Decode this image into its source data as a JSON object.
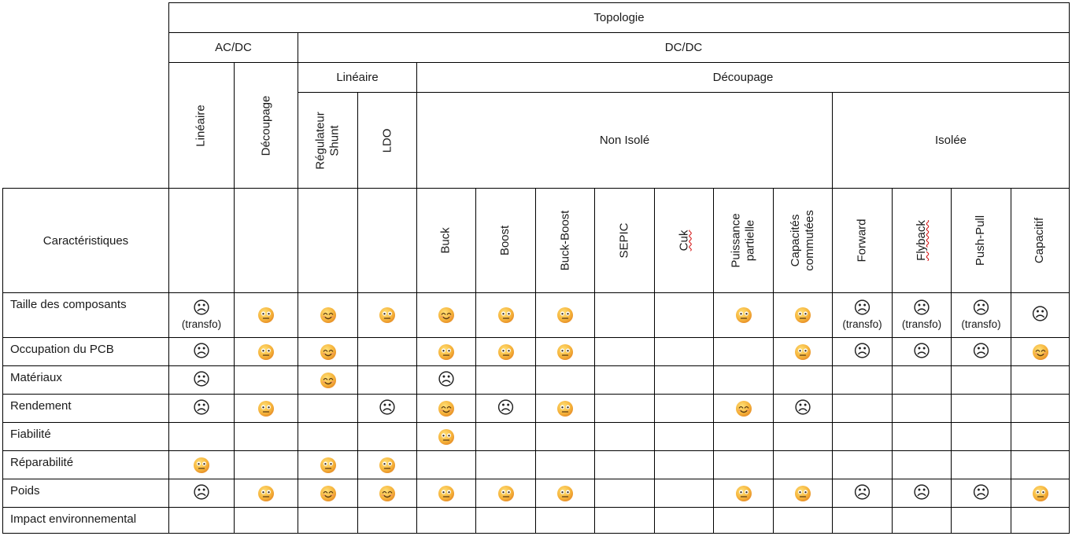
{
  "header": {
    "topologie": "Topologie",
    "acdc": "AC/DC",
    "dcdc": "DC/DC",
    "lineaire_dcdc": "Linéaire",
    "decoupage_dcdc": "Découpage",
    "non_isole": "Non Isolé",
    "isolee": "Isolée",
    "caracteristiques": "Caractéristiques"
  },
  "columns": [
    {
      "label": "Linéaire"
    },
    {
      "label": "Découpage"
    },
    {
      "label": "Régulateur\nShunt"
    },
    {
      "label": "LDO"
    },
    {
      "label": "Buck"
    },
    {
      "label": "Boost"
    },
    {
      "label": "Buck-Boost"
    },
    {
      "label": "SEPIC"
    },
    {
      "label": "Cuk"
    },
    {
      "label": "Puissance\npartielle"
    },
    {
      "label": "Capacités\ncommutées"
    },
    {
      "label": "Forward"
    },
    {
      "label": "Flyback"
    },
    {
      "label": "Push-Pull"
    },
    {
      "label": "Capacitif"
    }
  ],
  "legend": {
    "happy": "happy-face",
    "neutral": "neutral-face",
    "sad": "sad-face"
  },
  "rows": [
    {
      "label": "Taille des composants",
      "values": [
        "sad",
        "neutral",
        "happy",
        "neutral",
        "happy",
        "neutral",
        "neutral",
        "",
        "",
        "neutral",
        "neutral",
        "sad",
        "sad",
        "sad",
        "sad"
      ],
      "notes": [
        "(transfo)",
        "",
        "",
        "",
        "",
        "",
        "",
        "",
        "",
        "",
        "",
        "(transfo)",
        "(transfo)",
        "(transfo)",
        ""
      ]
    },
    {
      "label": "Occupation du PCB",
      "values": [
        "sad",
        "neutral",
        "happy",
        "",
        "neutral",
        "neutral",
        "neutral",
        "",
        "",
        "",
        "neutral",
        "sad",
        "sad",
        "sad",
        "happy"
      ]
    },
    {
      "label": "Matériaux",
      "values": [
        "sad",
        "",
        "happy",
        "",
        "sad",
        "",
        "",
        "",
        "",
        "",
        "",
        "",
        "",
        "",
        ""
      ]
    },
    {
      "label": "Rendement",
      "values": [
        "sad",
        "neutral",
        "",
        "sad",
        "happy",
        "sad",
        "neutral",
        "",
        "",
        "happy",
        "sad",
        "",
        "",
        "",
        ""
      ]
    },
    {
      "label": "Fiabilité",
      "values": [
        "",
        "",
        "",
        "",
        "neutral",
        "",
        "",
        "",
        "",
        "",
        "",
        "",
        "",
        "",
        ""
      ]
    },
    {
      "label": "Réparabilité",
      "values": [
        "neutral",
        "",
        "neutral",
        "neutral",
        "",
        "",
        "",
        "",
        "",
        "",
        "",
        "",
        "",
        "",
        ""
      ]
    },
    {
      "label": "Poids",
      "values": [
        "sad",
        "neutral",
        "happy",
        "happy",
        "neutral",
        "neutral",
        "neutral",
        "",
        "",
        "neutral",
        "neutral",
        "sad",
        "sad",
        "sad",
        "neutral"
      ]
    },
    {
      "label": "Impact environnemental",
      "values": [
        "",
        "",
        "",
        "",
        "",
        "",
        "",
        "",
        "",
        "",
        "",
        "",
        "",
        "",
        ""
      ]
    }
  ]
}
